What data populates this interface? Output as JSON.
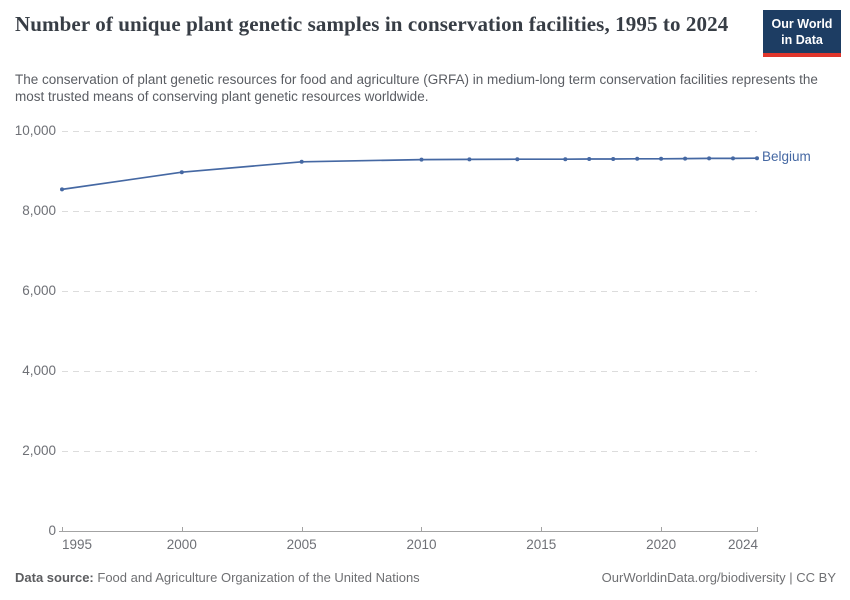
{
  "header": {
    "title": "Number of unique plant genetic samples in conservation facilities, 1995 to 2024",
    "subtitle": "The conservation of plant genetic resources for food and agriculture (GRFA) in medium-long term conservation facilities represents the most trusted means of conserving plant genetic resources worldwide.",
    "logo": {
      "line1": "Our World",
      "line2": "in Data"
    }
  },
  "footer": {
    "source_label": "Data source:",
    "source_text": "Food and Agriculture Organization of the United Nations",
    "credit": "OurWorldinData.org/biodiversity | CC BY"
  },
  "colors": {
    "series_blue": "#4568a3",
    "logo_navy": "#1d3d63",
    "logo_red": "#e0362c",
    "grid_gray": "#dcdcdc",
    "axis_gray": "#a3a3a3",
    "tick_text_gray": "#6e7076"
  },
  "chart_data": {
    "type": "line",
    "title": "Number of unique plant genetic samples in conservation facilities, 1995 to 2024",
    "xlabel": "",
    "ylabel": "",
    "xlim": [
      1995,
      2024
    ],
    "ylim": [
      0,
      10000
    ],
    "grid": "horizontal-dashed",
    "legend_position": "end-of-line-label",
    "x_ticks": [
      {
        "value": 1995,
        "label": "1995"
      },
      {
        "value": 2000,
        "label": "2000"
      },
      {
        "value": 2005,
        "label": "2005"
      },
      {
        "value": 2010,
        "label": "2010"
      },
      {
        "value": 2015,
        "label": "2015"
      },
      {
        "value": 2020,
        "label": "2020"
      },
      {
        "value": 2024,
        "label": "2024"
      }
    ],
    "y_ticks": [
      {
        "value": 0,
        "label": "0"
      },
      {
        "value": 2000,
        "label": "2,000"
      },
      {
        "value": 4000,
        "label": "4,000"
      },
      {
        "value": 6000,
        "label": "6,000"
      },
      {
        "value": 8000,
        "label": "8,000"
      },
      {
        "value": 10000,
        "label": "10,000"
      }
    ],
    "series": [
      {
        "name": "Belgium",
        "color": "#4568a3",
        "x": [
          1995,
          2000,
          2005,
          2010,
          2012,
          2014,
          2016,
          2017,
          2018,
          2019,
          2020,
          2021,
          2022,
          2023,
          2024
        ],
        "values": [
          8540,
          8970,
          9230,
          9285,
          9290,
          9295,
          9295,
          9300,
          9300,
          9305,
          9305,
          9310,
          9315,
          9315,
          9320
        ]
      }
    ]
  }
}
